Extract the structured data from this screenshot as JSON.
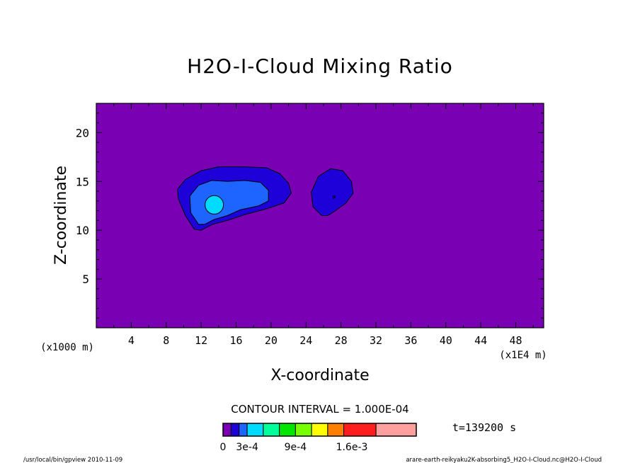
{
  "chart_data": {
    "type": "contour",
    "title": "H2O-I-Cloud Mixing Ratio",
    "xlabel": "X-coordinate",
    "ylabel": "Z-coordinate",
    "x_unit_left": "(x1000 m)",
    "x_unit_right": "(x1E4 m)",
    "xlim": [
      0,
      51.2
    ],
    "ylim": [
      0,
      23
    ],
    "x_ticks": [
      4,
      8,
      12,
      16,
      20,
      24,
      28,
      32,
      36,
      40,
      44,
      48
    ],
    "y_ticks": [
      5,
      10,
      15,
      20
    ],
    "contour_interval_text": "CONTOUR INTERVAL = 1.000E-04",
    "time_text": "t=139200 s",
    "colorbar": {
      "colors": [
        "#7a00b4",
        "#1e00d8",
        "#1e64ff",
        "#00dcff",
        "#00ff9a",
        "#00e600",
        "#78ff00",
        "#ffff00",
        "#ff8000",
        "#ff1e1e",
        "#ffa0a0"
      ],
      "labels": [
        {
          "text": "0",
          "at": 0
        },
        {
          "text": "3e-4",
          "at": 3
        },
        {
          "text": "9e-4",
          "at": 9
        },
        {
          "text": "1.6e-3",
          "at": 16
        }
      ],
      "widths": [
        1,
        1,
        1,
        2,
        2,
        2,
        2,
        2,
        2,
        4,
        5
      ]
    },
    "regions": [
      {
        "level": "1e-4",
        "color": "#1e00d8",
        "polygon": [
          [
            11.2,
            10.1
          ],
          [
            10.2,
            11.5
          ],
          [
            9.4,
            13.2
          ],
          [
            9.3,
            14.2
          ],
          [
            10.2,
            15.2
          ],
          [
            12.0,
            16.1
          ],
          [
            14.0,
            16.5
          ],
          [
            17.0,
            16.5
          ],
          [
            19.5,
            16.4
          ],
          [
            21.0,
            15.8
          ],
          [
            22.0,
            14.8
          ],
          [
            22.3,
            13.8
          ],
          [
            21.5,
            12.8
          ],
          [
            19.5,
            12.2
          ],
          [
            17.0,
            11.6
          ],
          [
            15.0,
            11.0
          ],
          [
            13.3,
            10.6
          ],
          [
            12.0,
            10.0
          ]
        ]
      },
      {
        "level": "1e-4",
        "color": "#1e00d8",
        "polygon": [
          [
            25.8,
            11.5
          ],
          [
            24.8,
            12.4
          ],
          [
            24.6,
            13.9
          ],
          [
            25.4,
            15.5
          ],
          [
            26.8,
            16.3
          ],
          [
            28.2,
            16.1
          ],
          [
            29.2,
            15.0
          ],
          [
            29.4,
            13.8
          ],
          [
            28.6,
            12.8
          ],
          [
            27.2,
            11.9
          ],
          [
            26.5,
            11.5
          ]
        ]
      },
      {
        "level": "2e-4",
        "color": "#1e64ff",
        "polygon": [
          [
            11.7,
            10.6
          ],
          [
            10.8,
            11.8
          ],
          [
            10.7,
            13.5
          ],
          [
            11.7,
            14.6
          ],
          [
            13.2,
            15.1
          ],
          [
            15.0,
            15.0
          ],
          [
            17.0,
            15.1
          ],
          [
            18.8,
            14.9
          ],
          [
            19.7,
            14.1
          ],
          [
            19.7,
            13.0
          ],
          [
            18.6,
            12.5
          ],
          [
            16.5,
            12.1
          ],
          [
            15.0,
            11.5
          ],
          [
            13.5,
            11.1
          ],
          [
            12.4,
            10.6
          ]
        ]
      }
    ],
    "peaks": [
      {
        "level": "3e-4",
        "color": "#00dcff",
        "x": 13.5,
        "z": 12.6,
        "rx": 1.05,
        "rz": 0.95
      },
      {
        "level": "1e-4",
        "color": "#1e00d8",
        "x": 27.2,
        "z": 13.4,
        "rx": 0.12,
        "rz": 0.12
      }
    ],
    "background_color": "#7a00b4"
  },
  "footer": {
    "left": "/usr/local/bin/gpview  2010-11-09",
    "right": "arare-earth-reikyaku2K-absorbing5_H2O-I-Cloud.nc@H2O-I-Cloud"
  }
}
